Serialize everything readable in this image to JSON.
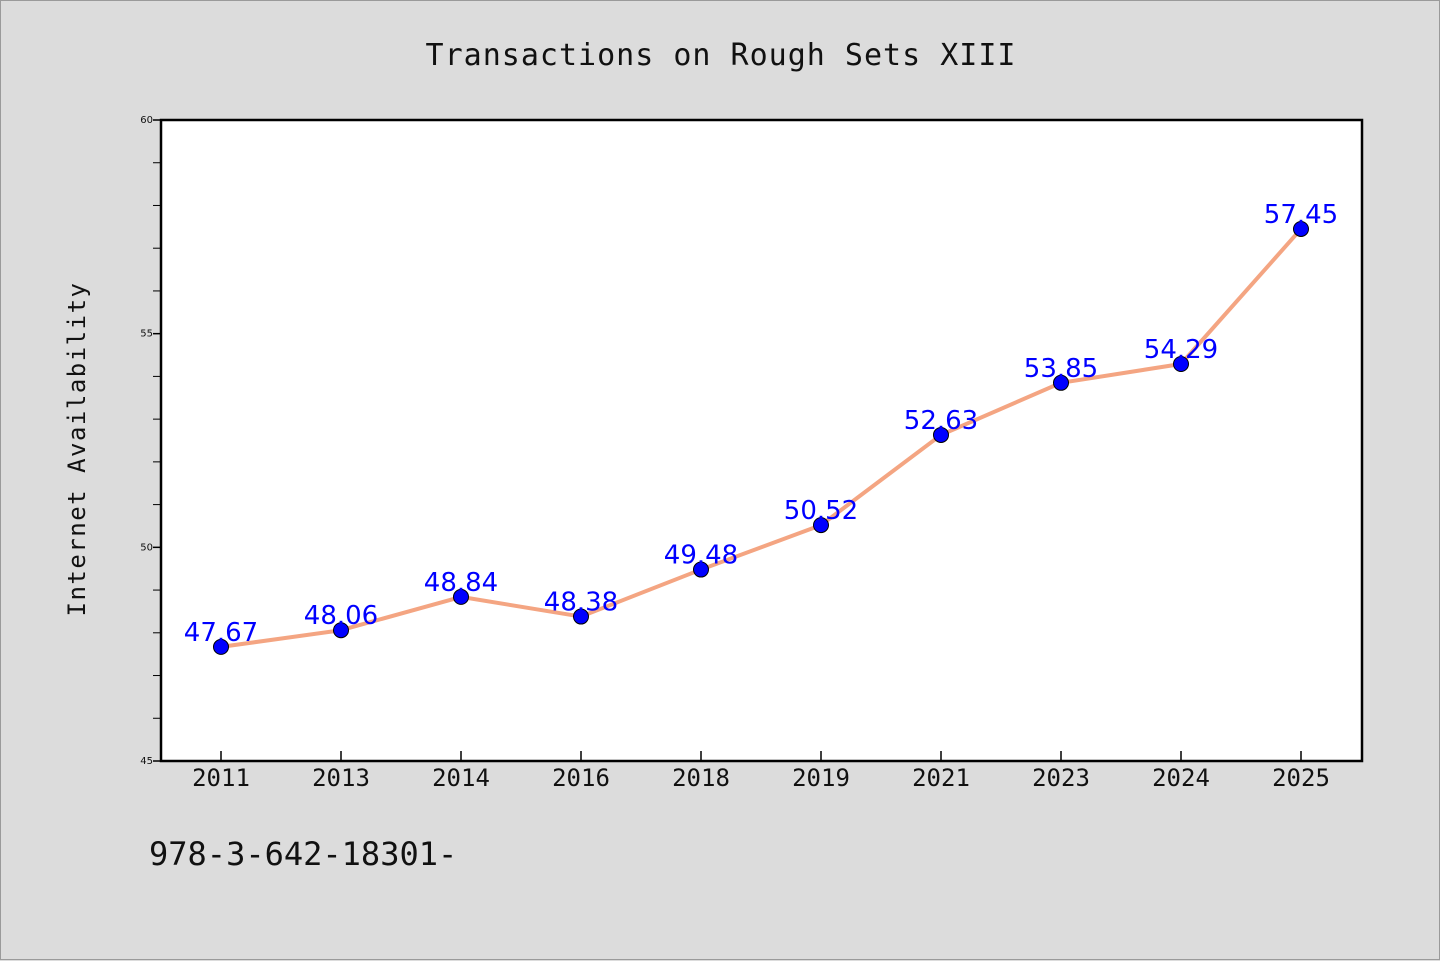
{
  "footer": {
    "text": "978-3-642-18301-"
  },
  "colors": {
    "background": "#dcdcdc",
    "plot_bg": "#ffffff",
    "line": "#f4a582",
    "marker": "#0000ff",
    "label": "#0000ff"
  },
  "chart_data": {
    "type": "line",
    "title": "Transactions on Rough Sets XIII",
    "xlabel": "",
    "ylabel": "Internet Availability",
    "categories": [
      "2011",
      "2013",
      "2014",
      "2016",
      "2018",
      "2019",
      "2021",
      "2023",
      "2024",
      "2025"
    ],
    "series": [
      {
        "values": [
          47.67,
          48.06,
          48.84,
          48.38,
          49.48,
          50.52,
          52.63,
          53.85,
          54.29,
          57.45
        ]
      }
    ],
    "data_labels": [
      "47.67",
      "48.06",
      "48.84",
      "48.38",
      "49.48",
      "50.52",
      "52.63",
      "53.85",
      "54.29",
      "57.45"
    ],
    "ylim": [
      45,
      60
    ],
    "y_ticks": [
      45,
      50,
      55,
      60
    ],
    "y_minor_step": 1,
    "grid": false,
    "legend": "none"
  }
}
